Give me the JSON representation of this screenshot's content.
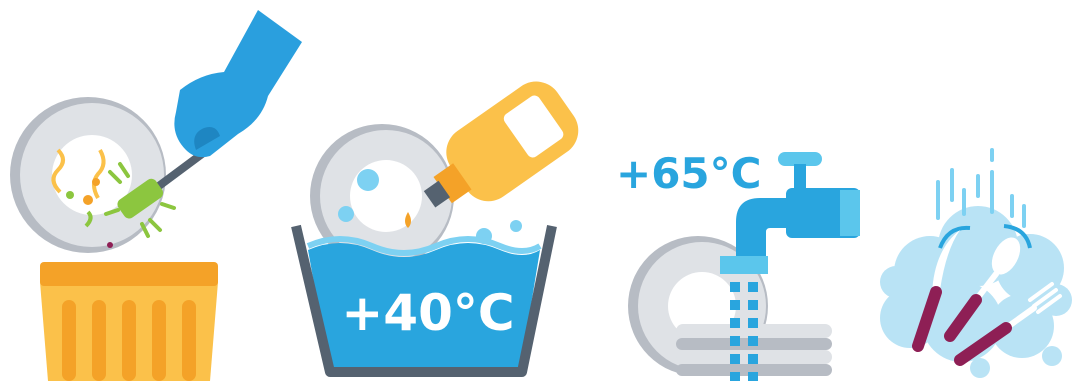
{
  "steps": [
    {
      "id": "scrape",
      "icon": "scrape-food-into-bin-icon"
    },
    {
      "id": "wash",
      "temperature": "+40°C",
      "icon": "wash-in-basin-icon"
    },
    {
      "id": "rinse",
      "temperature": "+65°C",
      "icon": "rinse-under-tap-icon"
    },
    {
      "id": "dry",
      "icon": "clean-cutlery-icon"
    }
  ],
  "colors": {
    "plate": "#cfd3d9",
    "plate_shadow": "#b7bcc4",
    "glove": "#2a9fde",
    "brush": "#8cc63f",
    "bin": "#fbc14a",
    "bin_dark": "#f4a228",
    "bottle": "#fbc14a",
    "water": "#29a5de",
    "water_light": "#7dd1f2",
    "basin_rim": "#556270",
    "tap": "#29a5de",
    "tap_light": "#5bc6ec",
    "label_blue": "#29a5de",
    "foam": "#b9e3f5",
    "handle": "#8e1f55"
  }
}
